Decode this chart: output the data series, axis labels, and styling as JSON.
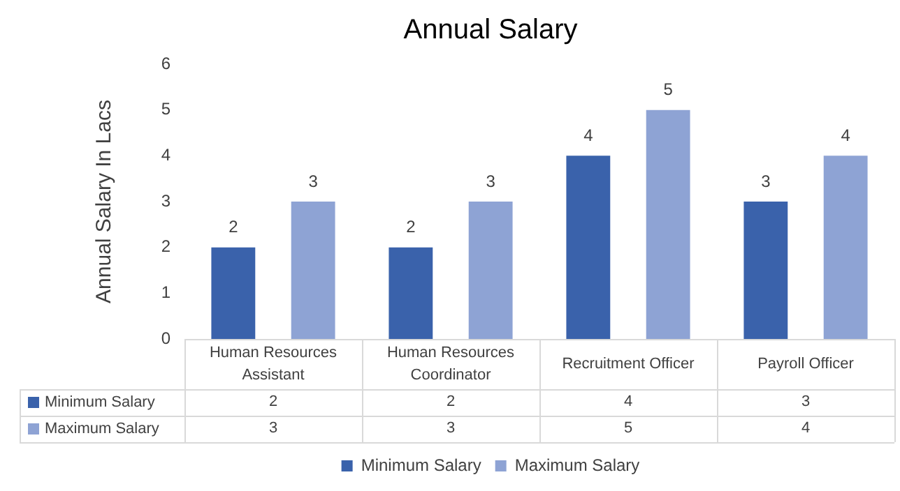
{
  "chart_data": {
    "type": "bar",
    "title": "Annual Salary",
    "ylabel": "Annual Salary In Lacs",
    "categories": [
      "Human Resources Assistant",
      "Human Resources Coordinator",
      "Recruitment Officer",
      "Payroll Officer"
    ],
    "series": [
      {
        "name": "Minimum Salary",
        "color": "#3a62ab",
        "values": [
          2,
          2,
          4,
          3
        ],
        "value_labels": [
          "2",
          "2",
          "4",
          "3"
        ]
      },
      {
        "name": "Maximum Salary",
        "color": "#8ea3d4",
        "values": [
          3,
          3,
          5,
          4
        ],
        "value_labels": [
          "3",
          "3",
          "5",
          "4"
        ]
      }
    ],
    "annotations": [
      "2",
      "2",
      "4",
      "3",
      "3",
      "3",
      "5",
      "4"
    ],
    "ylim": [
      0,
      6
    ],
    "yticks": [
      0,
      1,
      2,
      3,
      4,
      5,
      6
    ],
    "grid": false,
    "data_labels": true,
    "legend": "bottom"
  }
}
